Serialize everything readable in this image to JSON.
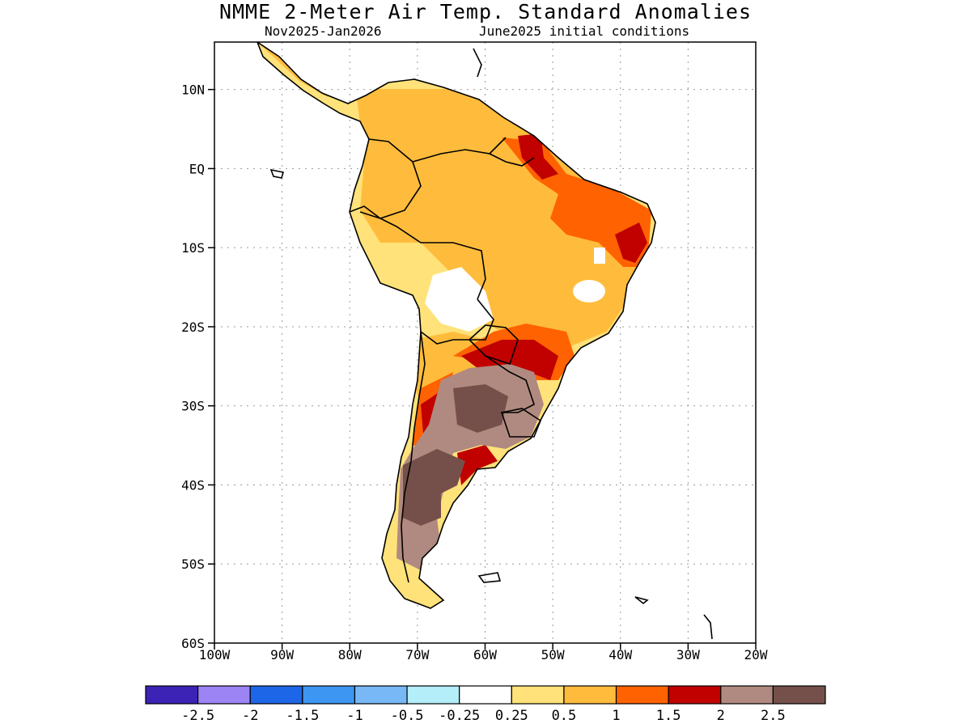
{
  "header": {
    "title": "NMME 2-Meter Air Temp. Standard Anomalies",
    "period": "Nov2025-Jan2026",
    "initial_conditions": "June2025 initial conditions"
  },
  "axes": {
    "lat_labels": [
      "10N",
      "EQ",
      "10S",
      "20S",
      "30S",
      "40S",
      "50S",
      "60S"
    ],
    "lat_values": [
      10,
      0,
      -10,
      -20,
      -30,
      -40,
      -50,
      -60
    ],
    "lon_labels": [
      "100W",
      "90W",
      "80W",
      "70W",
      "60W",
      "50W",
      "40W",
      "30W",
      "20W"
    ],
    "lon_values": [
      -100,
      -90,
      -80,
      -70,
      -60,
      -50,
      -40,
      -30,
      -20
    ],
    "lat_range": [
      -60,
      16
    ],
    "lon_range": [
      -100,
      -20
    ],
    "grid": "dotted"
  },
  "colorbar": {
    "labels": [
      "-2.5",
      "-2",
      "-1.5",
      "-1",
      "-0.5",
      "-0.25",
      "0.25",
      "0.5",
      "1",
      "1.5",
      "2",
      "2.5"
    ],
    "colors": [
      "#3d22b6",
      "#9d84f5",
      "#1e66e8",
      "#3c96f2",
      "#78b8f7",
      "#b3eef9",
      "#ffffff",
      "#ffe27a",
      "#ffbc3c",
      "#ff6200",
      "#c10000",
      "#b08a80",
      "#75504a"
    ]
  },
  "map": {
    "land": "#ffffff",
    "outline": "#000000"
  }
}
